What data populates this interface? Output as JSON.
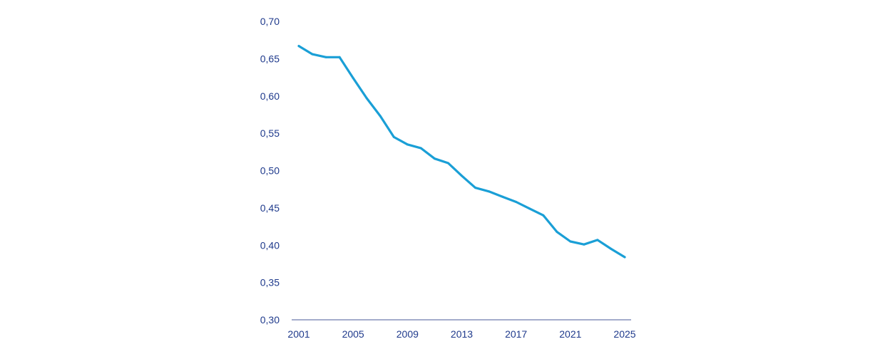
{
  "chart_data": {
    "type": "line",
    "title": "",
    "xlabel": "",
    "ylabel": "",
    "x": [
      2001,
      2002,
      2003,
      2004,
      2005,
      2006,
      2007,
      2008,
      2009,
      2010,
      2011,
      2012,
      2013,
      2014,
      2015,
      2016,
      2017,
      2018,
      2019,
      2020,
      2021,
      2022,
      2023,
      2024,
      2025
    ],
    "series": [
      {
        "name": "",
        "values": [
          0.667,
          0.656,
          0.652,
          0.652,
          0.624,
          0.597,
          0.573,
          0.545,
          0.535,
          0.53,
          0.516,
          0.51,
          0.493,
          0.477,
          0.472,
          0.465,
          0.458,
          0.449,
          0.44,
          0.418,
          0.405,
          0.401,
          0.407,
          0.395,
          0.384
        ]
      }
    ],
    "ylim": [
      0.3,
      0.7
    ],
    "xlim": [
      2001,
      2025
    ],
    "y_ticks": [
      "0,30",
      "0,35",
      "0,40",
      "0,45",
      "0,50",
      "0,55",
      "0,60",
      "0,65",
      "0,70"
    ],
    "y_tick_values": [
      0.3,
      0.35,
      0.4,
      0.45,
      0.5,
      0.55,
      0.6,
      0.65,
      0.7
    ],
    "x_ticks": [
      "2001",
      "2005",
      "2009",
      "2013",
      "2017",
      "2021",
      "2025"
    ],
    "x_tick_values": [
      2001,
      2005,
      2009,
      2013,
      2017,
      2021,
      2025
    ],
    "grid": false,
    "colors": {
      "line": "#1a9fd6",
      "text": "#1f3a8c",
      "axis": "#4a5a9a"
    }
  }
}
